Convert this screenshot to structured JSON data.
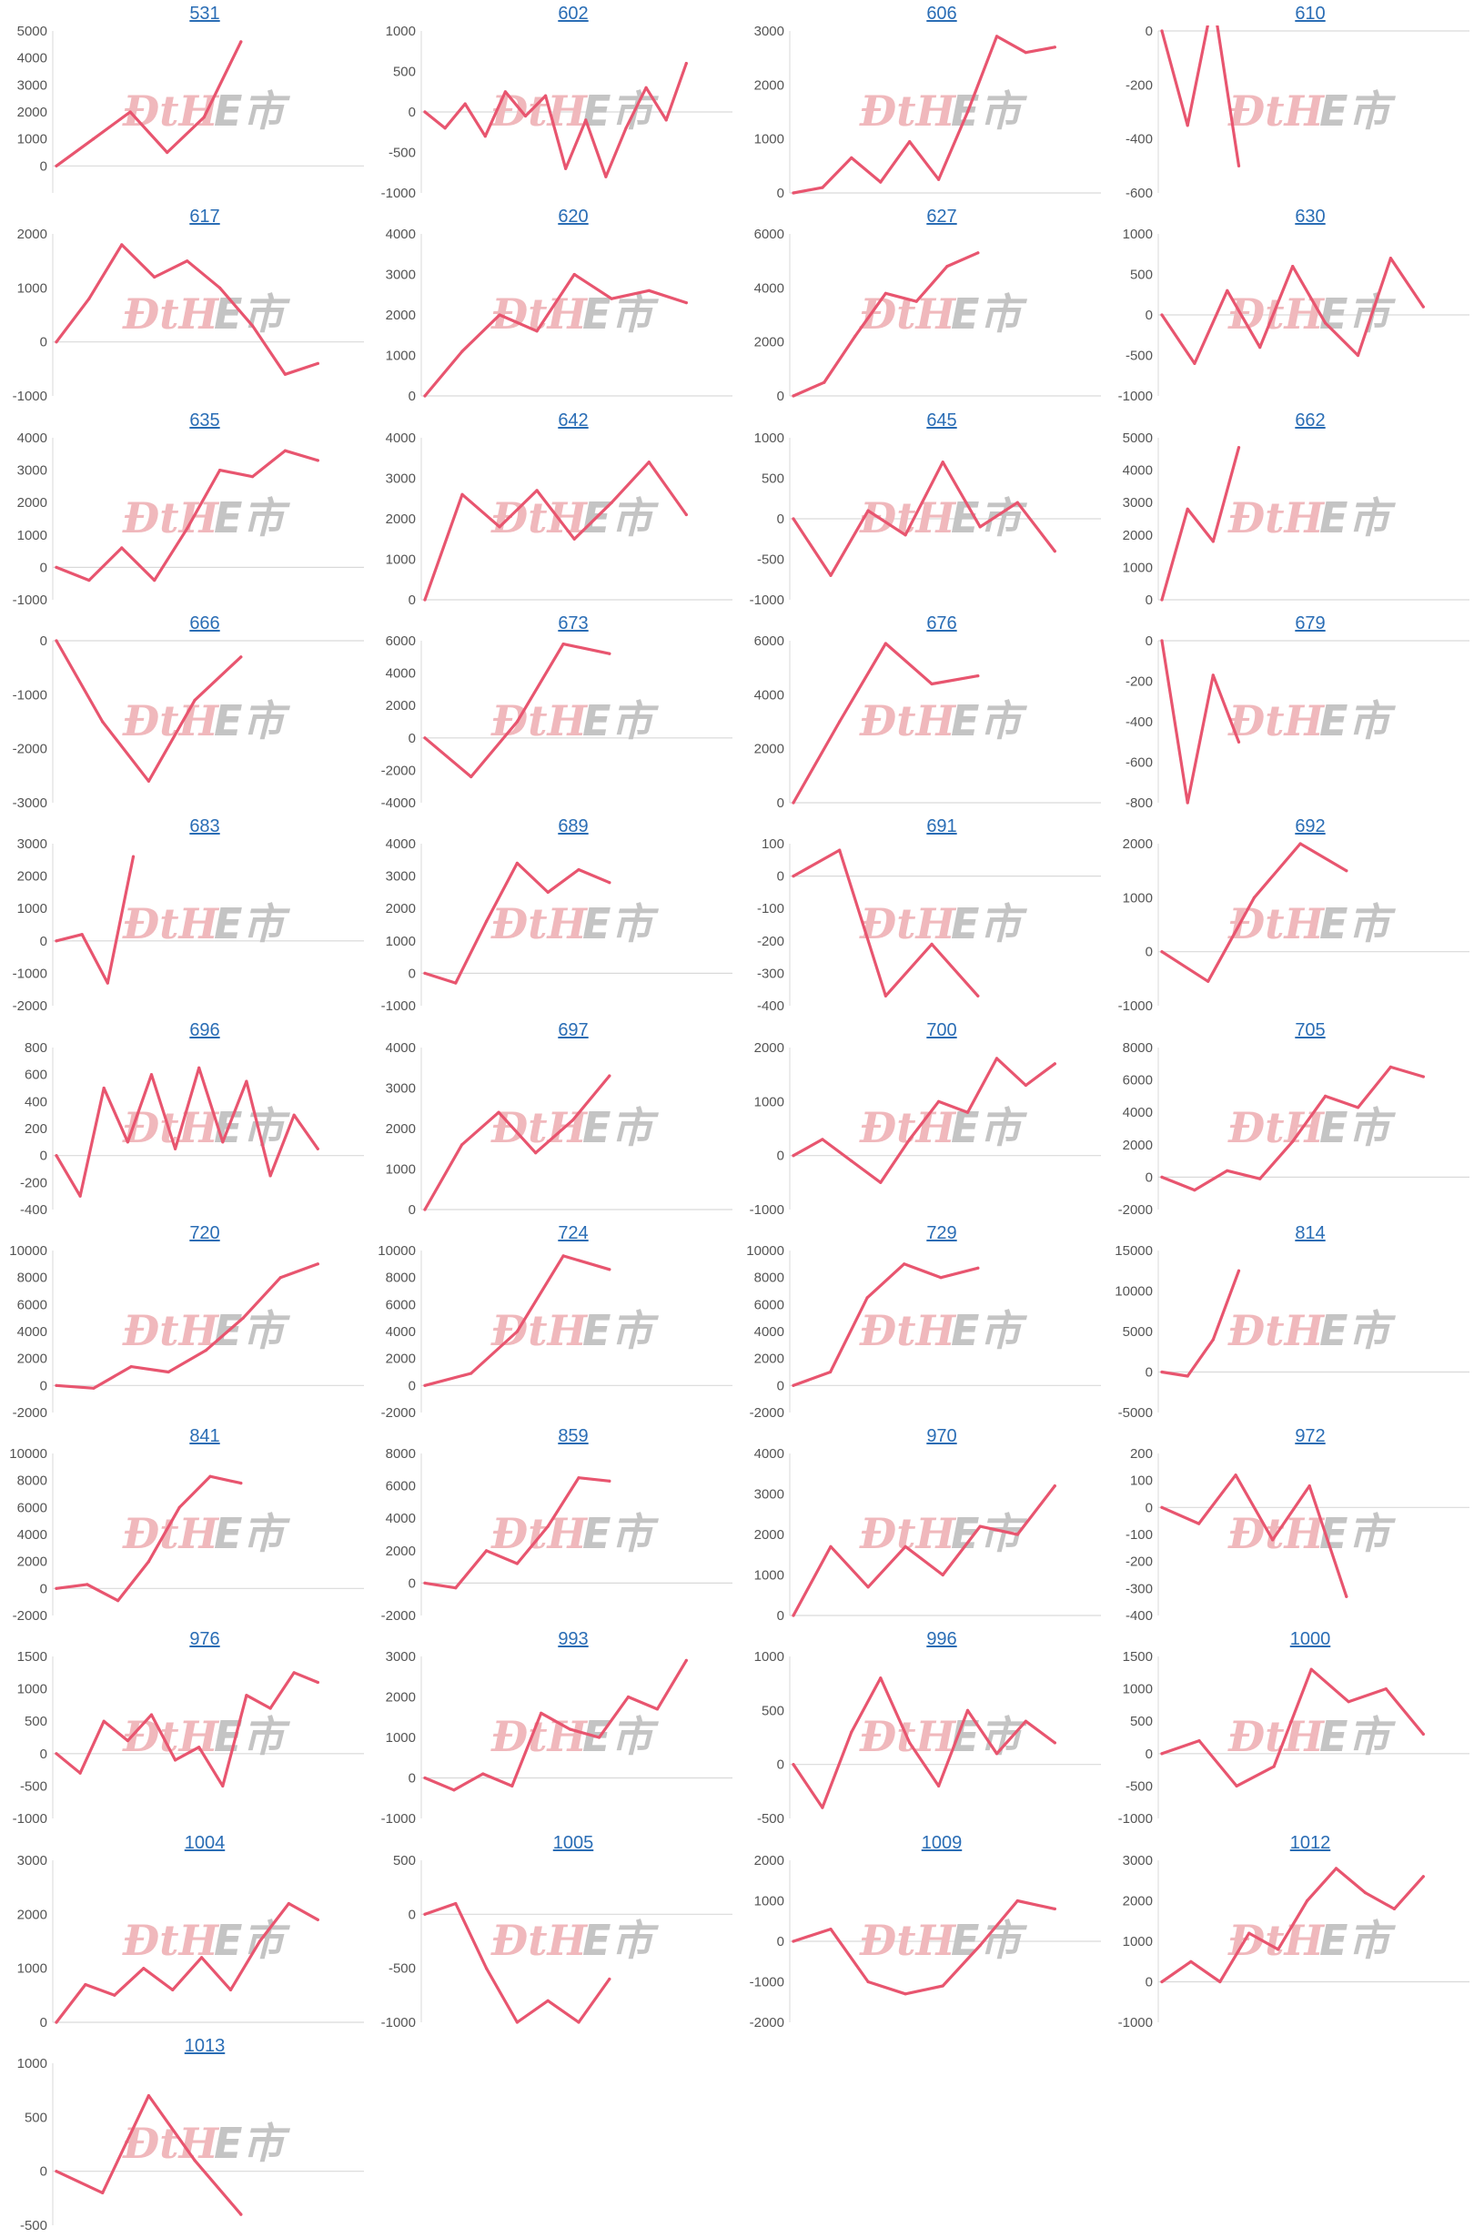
{
  "colors": {
    "line": "#e8556f",
    "axis": "#d9d9d9",
    "title": "#2a6db5",
    "tick": "#555555"
  },
  "watermark": {
    "left": "ÐtH",
    "right": "E市"
  },
  "chart_data": [
    {
      "title": "531",
      "type": "line",
      "ylim": [
        -1000,
        5000
      ],
      "yticks": [
        0,
        1000,
        2000,
        3000,
        4000,
        5000
      ],
      "y": [
        0,
        1000,
        2000,
        500,
        1800,
        4600
      ]
    },
    {
      "title": "602",
      "type": "line",
      "ylim": [
        -1000,
        1000
      ],
      "yticks": [
        -1000,
        -500,
        0,
        500,
        1000
      ],
      "y": [
        0,
        -200,
        100,
        -300,
        250,
        -50,
        200,
        -700,
        -100,
        -800,
        -200,
        300,
        -100,
        600
      ]
    },
    {
      "title": "606",
      "type": "line",
      "ylim": [
        0,
        3000
      ],
      "yticks": [
        0,
        1000,
        2000,
        3000
      ],
      "y": [
        0,
        100,
        650,
        200,
        950,
        250,
        1500,
        2900,
        2600,
        2700
      ]
    },
    {
      "title": "610",
      "type": "line",
      "ylim": [
        -600,
        0
      ],
      "yticks": [
        -600,
        -400,
        -200,
        0
      ],
      "y": [
        0,
        -350,
        120,
        -500
      ]
    },
    {
      "title": "617",
      "type": "line",
      "ylim": [
        -1000,
        2000
      ],
      "yticks": [
        -1000,
        0,
        1000,
        2000
      ],
      "y": [
        0,
        800,
        1800,
        1200,
        1500,
        1000,
        300,
        -600,
        -400
      ]
    },
    {
      "title": "620",
      "type": "line",
      "ylim": [
        0,
        4000
      ],
      "yticks": [
        0,
        1000,
        2000,
        3000,
        4000
      ],
      "y": [
        0,
        1100,
        2000,
        1600,
        3000,
        2400,
        2600,
        2300
      ]
    },
    {
      "title": "627",
      "type": "line",
      "ylim": [
        0,
        6000
      ],
      "yticks": [
        0,
        2000,
        4000,
        6000
      ],
      "y": [
        0,
        500,
        2200,
        3800,
        3500,
        4800,
        5300
      ]
    },
    {
      "title": "630",
      "type": "line",
      "ylim": [
        -1000,
        1000
      ],
      "yticks": [
        -1000,
        -500,
        0,
        500,
        1000
      ],
      "y": [
        0,
        -600,
        300,
        -400,
        600,
        -100,
        -500,
        700,
        100
      ]
    },
    {
      "title": "635",
      "type": "line",
      "ylim": [
        -1000,
        4000
      ],
      "yticks": [
        -1000,
        0,
        1000,
        2000,
        3000,
        4000
      ],
      "y": [
        0,
        -400,
        600,
        -400,
        1200,
        3000,
        2800,
        3600,
        3300
      ]
    },
    {
      "title": "642",
      "type": "line",
      "ylim": [
        0,
        4000
      ],
      "yticks": [
        0,
        1000,
        2000,
        3000,
        4000
      ],
      "y": [
        0,
        2600,
        1800,
        2700,
        1500,
        2400,
        3400,
        2100
      ]
    },
    {
      "title": "645",
      "type": "line",
      "ylim": [
        -1000,
        1000
      ],
      "yticks": [
        -1000,
        -500,
        0,
        500,
        1000
      ],
      "y": [
        0,
        -700,
        100,
        -200,
        700,
        -100,
        200,
        -400
      ]
    },
    {
      "title": "662",
      "type": "line",
      "ylim": [
        0,
        5000
      ],
      "yticks": [
        0,
        1000,
        2000,
        3000,
        4000,
        5000
      ],
      "y": [
        0,
        2800,
        1800,
        4700
      ]
    },
    {
      "title": "666",
      "type": "line",
      "ylim": [
        -3000,
        0
      ],
      "yticks": [
        -3000,
        -2000,
        -1000,
        0
      ],
      "y": [
        0,
        -1500,
        -2600,
        -1100,
        -300
      ]
    },
    {
      "title": "673",
      "type": "line",
      "ylim": [
        -4000,
        6000
      ],
      "yticks": [
        -4000,
        -2000,
        0,
        2000,
        4000,
        6000
      ],
      "y": [
        0,
        -2400,
        1000,
        5800,
        5200
      ]
    },
    {
      "title": "676",
      "type": "line",
      "ylim": [
        0,
        6000
      ],
      "yticks": [
        0,
        2000,
        4000,
        6000
      ],
      "y": [
        0,
        3000,
        5900,
        4400,
        4700
      ]
    },
    {
      "title": "679",
      "type": "line",
      "ylim": [
        -800,
        0
      ],
      "yticks": [
        -800,
        -600,
        -400,
        -200,
        0
      ],
      "y": [
        0,
        -800,
        -170,
        -500
      ]
    },
    {
      "title": "683",
      "type": "line",
      "ylim": [
        -2000,
        3000
      ],
      "yticks": [
        -2000,
        -1000,
        0,
        1000,
        2000,
        3000
      ],
      "y": [
        0,
        200,
        -1300,
        2600
      ]
    },
    {
      "title": "689",
      "type": "line",
      "ylim": [
        -1000,
        4000
      ],
      "yticks": [
        -1000,
        0,
        1000,
        2000,
        3000,
        4000
      ],
      "y": [
        0,
        -300,
        1600,
        3400,
        2500,
        3200,
        2800
      ]
    },
    {
      "title": "691",
      "type": "line",
      "ylim": [
        -400,
        100
      ],
      "yticks": [
        -400,
        -300,
        -200,
        -100,
        0,
        100
      ],
      "y": [
        0,
        80,
        -370,
        -210,
        -370
      ]
    },
    {
      "title": "692",
      "type": "line",
      "ylim": [
        -1000,
        2000
      ],
      "yticks": [
        -1000,
        0,
        1000,
        2000
      ],
      "y": [
        0,
        -550,
        1000,
        2000,
        1500
      ]
    },
    {
      "title": "696",
      "type": "line",
      "ylim": [
        -400,
        800
      ],
      "yticks": [
        -400,
        -200,
        0,
        200,
        400,
        600,
        800
      ],
      "y": [
        0,
        -300,
        500,
        100,
        600,
        50,
        650,
        100,
        550,
        -150,
        300,
        50
      ]
    },
    {
      "title": "697",
      "type": "line",
      "ylim": [
        0,
        4000
      ],
      "yticks": [
        0,
        1000,
        2000,
        3000,
        4000
      ],
      "y": [
        0,
        1600,
        2400,
        1400,
        2200,
        3300
      ]
    },
    {
      "title": "700",
      "type": "line",
      "ylim": [
        -1000,
        2000
      ],
      "yticks": [
        -1000,
        0,
        1000,
        2000
      ],
      "y": [
        0,
        300,
        -100,
        -500,
        300,
        1000,
        800,
        1800,
        1300,
        1700
      ]
    },
    {
      "title": "705",
      "type": "line",
      "ylim": [
        -2000,
        8000
      ],
      "yticks": [
        -2000,
        0,
        2000,
        4000,
        6000,
        8000
      ],
      "y": [
        0,
        -800,
        400,
        -100,
        2200,
        5000,
        4300,
        6800,
        6200
      ]
    },
    {
      "title": "720",
      "type": "line",
      "ylim": [
        -2000,
        10000
      ],
      "yticks": [
        -2000,
        0,
        2000,
        4000,
        6000,
        8000,
        10000
      ],
      "y": [
        0,
        -200,
        1400,
        1000,
        2600,
        5000,
        8000,
        9000
      ]
    },
    {
      "title": "724",
      "type": "line",
      "ylim": [
        -2000,
        10000
      ],
      "yticks": [
        -2000,
        0,
        2000,
        4000,
        6000,
        8000,
        10000
      ],
      "y": [
        0,
        900,
        4000,
        9600,
        8600
      ]
    },
    {
      "title": "729",
      "type": "line",
      "ylim": [
        -2000,
        10000
      ],
      "yticks": [
        -2000,
        0,
        2000,
        4000,
        6000,
        8000,
        10000
      ],
      "y": [
        0,
        1000,
        6500,
        9000,
        8000,
        8700
      ]
    },
    {
      "title": "814",
      "type": "line",
      "ylim": [
        -5000,
        15000
      ],
      "yticks": [
        -5000,
        0,
        5000,
        10000,
        15000
      ],
      "y": [
        0,
        -500,
        4000,
        12500
      ]
    },
    {
      "title": "841",
      "type": "line",
      "ylim": [
        -2000,
        10000
      ],
      "yticks": [
        -2000,
        0,
        2000,
        4000,
        6000,
        8000,
        10000
      ],
      "y": [
        0,
        300,
        -900,
        2000,
        6000,
        8300,
        7800
      ]
    },
    {
      "title": "859",
      "type": "line",
      "ylim": [
        -2000,
        8000
      ],
      "yticks": [
        -2000,
        0,
        2000,
        4000,
        6000,
        8000
      ],
      "y": [
        0,
        -300,
        2000,
        1200,
        3500,
        6500,
        6300
      ]
    },
    {
      "title": "970",
      "type": "line",
      "ylim": [
        0,
        4000
      ],
      "yticks": [
        0,
        1000,
        2000,
        3000,
        4000
      ],
      "y": [
        0,
        1700,
        700,
        1700,
        1000,
        2200,
        2000,
        3200
      ]
    },
    {
      "title": "972",
      "type": "line",
      "ylim": [
        -400,
        200
      ],
      "yticks": [
        -400,
        -300,
        -200,
        -100,
        0,
        100,
        200
      ],
      "y": [
        0,
        -60,
        120,
        -120,
        80,
        -330
      ]
    },
    {
      "title": "976",
      "type": "line",
      "ylim": [
        -1000,
        1500
      ],
      "yticks": [
        -1000,
        -500,
        0,
        500,
        1000,
        1500
      ],
      "y": [
        0,
        -300,
        500,
        200,
        600,
        -100,
        100,
        -500,
        900,
        700,
        1250,
        1100
      ]
    },
    {
      "title": "993",
      "type": "line",
      "ylim": [
        -1000,
        3000
      ],
      "yticks": [
        -1000,
        0,
        1000,
        2000,
        3000
      ],
      "y": [
        0,
        -300,
        100,
        -200,
        1600,
        1200,
        1000,
        2000,
        1700,
        2900
      ]
    },
    {
      "title": "996",
      "type": "line",
      "ylim": [
        -500,
        1000
      ],
      "yticks": [
        -500,
        0,
        500,
        1000
      ],
      "y": [
        0,
        -400,
        300,
        800,
        200,
        -200,
        500,
        100,
        400,
        200
      ]
    },
    {
      "title": "1000",
      "type": "line",
      "ylim": [
        -1000,
        1500
      ],
      "yticks": [
        -1000,
        -500,
        0,
        500,
        1000,
        1500
      ],
      "y": [
        0,
        200,
        -500,
        -200,
        1300,
        800,
        1000,
        300
      ]
    },
    {
      "title": "1004",
      "type": "line",
      "ylim": [
        0,
        3000
      ],
      "yticks": [
        0,
        1000,
        2000,
        3000
      ],
      "y": [
        0,
        700,
        500,
        1000,
        600,
        1200,
        600,
        1500,
        2200,
        1900
      ]
    },
    {
      "title": "1005",
      "type": "line",
      "ylim": [
        -1000,
        500
      ],
      "yticks": [
        -1000,
        -500,
        0,
        500
      ],
      "y": [
        0,
        100,
        -500,
        -1000,
        -800,
        -1000,
        -600
      ]
    },
    {
      "title": "1009",
      "type": "line",
      "ylim": [
        -2000,
        2000
      ],
      "yticks": [
        -2000,
        -1000,
        0,
        1000,
        2000
      ],
      "y": [
        0,
        300,
        -1000,
        -1300,
        -1100,
        -100,
        1000,
        800
      ]
    },
    {
      "title": "1012",
      "type": "line",
      "ylim": [
        -1000,
        3000
      ],
      "yticks": [
        -1000,
        0,
        1000,
        2000,
        3000
      ],
      "y": [
        0,
        500,
        0,
        1200,
        800,
        2000,
        2800,
        2200,
        1800,
        2600
      ]
    },
    {
      "title": "1013",
      "type": "line",
      "ylim": [
        -500,
        1000
      ],
      "yticks": [
        -500,
        0,
        500,
        1000
      ],
      "y": [
        0,
        -200,
        700,
        100,
        -400
      ]
    }
  ]
}
